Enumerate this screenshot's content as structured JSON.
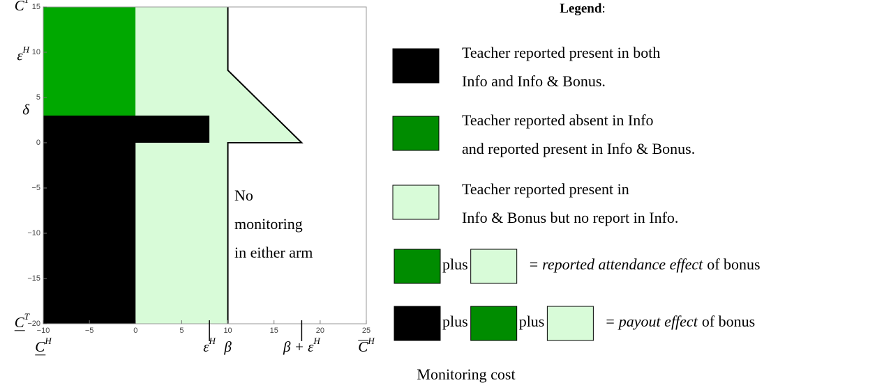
{
  "chart_data": {
    "type": "region",
    "xlim": [
      -10,
      25
    ],
    "ylim": [
      -20,
      15
    ],
    "xticks": [
      {
        "value": -10,
        "label": "−10"
      },
      {
        "value": -5,
        "label": "−5"
      },
      0,
      5,
      10,
      15,
      20,
      25
    ],
    "yticks": [
      {
        "value": -20,
        "label": "−20"
      },
      {
        "value": -15,
        "label": "−15"
      },
      {
        "value": -10,
        "label": "−10"
      },
      {
        "value": -5,
        "label": "−5"
      },
      0,
      5,
      10,
      15
    ],
    "x_label": "Monitoring cost",
    "regions": [
      {
        "color": "#00a800",
        "outline": false,
        "x": [
          -10,
          0,
          0,
          -10
        ],
        "y": [
          3,
          3,
          15,
          15
        ]
      },
      {
        "color": "#d8fbd8",
        "outline": true,
        "x": [
          10,
          10,
          18,
          10,
          10,
          0,
          0,
          8,
          8,
          0,
          0
        ],
        "y": [
          -20,
          0,
          0,
          8,
          15,
          15,
          3,
          3,
          0,
          0,
          -20
        ]
      },
      {
        "color": "#000000",
        "outline": false,
        "x": [
          -10,
          0,
          0,
          8,
          8,
          -10
        ],
        "y": [
          -20,
          -20,
          0,
          0,
          3,
          3
        ]
      }
    ],
    "y_markers": [
      {
        "value": 15,
        "text": "C",
        "sup": "T",
        "bar": "over"
      },
      {
        "value": 9.5,
        "text": "ε",
        "sup": "H"
      },
      {
        "value": 3.5,
        "text": "δ"
      },
      {
        "value": -20,
        "text": "C",
        "sup": "T",
        "bar": "under"
      }
    ],
    "x_markers": [
      {
        "value": -10,
        "text": "C",
        "sup": "H",
        "bar": "under"
      },
      {
        "value": 8,
        "text": "ε",
        "sup": "H",
        "tick": true
      },
      {
        "value": 10,
        "text": "β"
      },
      {
        "value": 18,
        "text": "β + ε",
        "sup": "H",
        "tick": true
      },
      {
        "value": 25,
        "text": "C",
        "sup": "H",
        "bar": "over"
      }
    ],
    "annotation": [
      "No",
      "monitoring",
      "in either arm"
    ],
    "legend_title": "Legend",
    "legend_title_suffix": ":",
    "legend": [
      {
        "color": "#000000",
        "lines": [
          "Teacher reported present in both",
          "Info and Info & Bonus."
        ]
      },
      {
        "color": "#008c00",
        "lines": [
          "Teacher reported absent in Info",
          "and reported present in Info & Bonus."
        ]
      },
      {
        "color": "#d8fbd8",
        "lines": [
          "Teacher reported present in",
          "Info & Bonus but no report in Info."
        ]
      }
    ],
    "sums": [
      {
        "swatches": [
          "#008c00",
          "#d8fbd8"
        ],
        "joiner": "plus",
        "equals": "=",
        "effect": "reported attendance effect",
        "suffix": "of bonus"
      },
      {
        "swatches": [
          "#000000",
          "#008c00",
          "#d8fbd8"
        ],
        "joiner": "plus",
        "equals": "=",
        "effect": "payout effect",
        "suffix": "of bonus"
      }
    ]
  }
}
